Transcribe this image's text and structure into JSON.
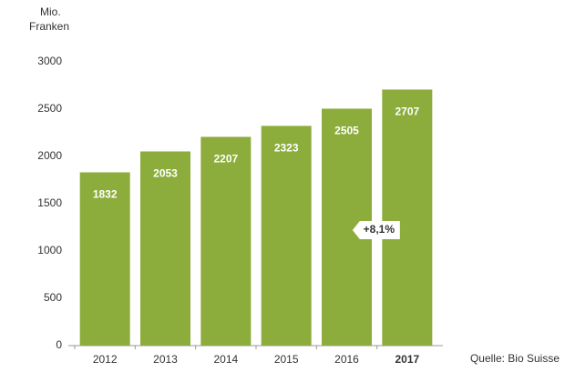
{
  "chart_data": {
    "type": "bar",
    "y_label": [
      "Mio.",
      "Franken"
    ],
    "categories": [
      "2012",
      "2013",
      "2014",
      "2015",
      "2016",
      "2017"
    ],
    "values": [
      1832,
      2053,
      2207,
      2323,
      2505,
      2707
    ],
    "color": "#8cad3b",
    "ylim": [
      0,
      3000
    ],
    "yticks": [
      0,
      500,
      1000,
      1500,
      2000,
      2500,
      3000
    ],
    "annotation": "+8,1%",
    "source": "Quelle: Bio Suisse"
  }
}
